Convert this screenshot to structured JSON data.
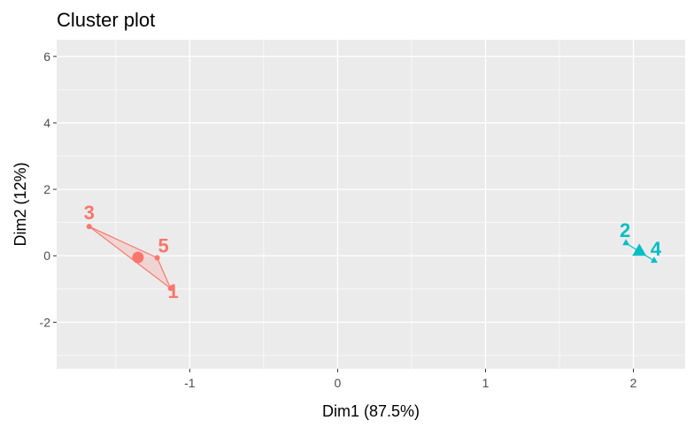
{
  "chart_data": {
    "type": "scatter",
    "title": "Cluster plot",
    "xlabel": "Dim1 (87.5%)",
    "ylabel": "Dim2 (12%)",
    "xlim": [
      -1.9,
      2.35
    ],
    "ylim": [
      -3.4,
      6.5
    ],
    "xticks": [
      {
        "value": -1,
        "label": "-1"
      },
      {
        "value": 0,
        "label": "0"
      },
      {
        "value": 1,
        "label": "1"
      },
      {
        "value": 2,
        "label": "2"
      }
    ],
    "yticks": [
      {
        "value": -2,
        "label": "-2"
      },
      {
        "value": 0,
        "label": "0"
      },
      {
        "value": 2,
        "label": "2"
      },
      {
        "value": 4,
        "label": "4"
      },
      {
        "value": 6,
        "label": "6"
      }
    ],
    "grid": true,
    "background": "#ebebeb",
    "clusters": [
      {
        "color": "#f8766d",
        "marker": "circle",
        "centroid": {
          "x": -1.35,
          "y": -0.05
        },
        "hull": [
          "3",
          "5",
          "1"
        ],
        "points": [
          {
            "label": "1",
            "x": -1.13,
            "y": -0.98
          },
          {
            "label": "3",
            "x": -1.68,
            "y": 0.88
          },
          {
            "label": "5",
            "x": -1.22,
            "y": -0.06
          }
        ]
      },
      {
        "color": "#00bfc4",
        "marker": "triangle",
        "centroid": {
          "x": 2.04,
          "y": 0.12
        },
        "hull": [
          "2",
          "4"
        ],
        "points": [
          {
            "label": "2",
            "x": 1.95,
            "y": 0.38
          },
          {
            "label": "4",
            "x": 2.14,
            "y": -0.15
          }
        ]
      }
    ]
  }
}
